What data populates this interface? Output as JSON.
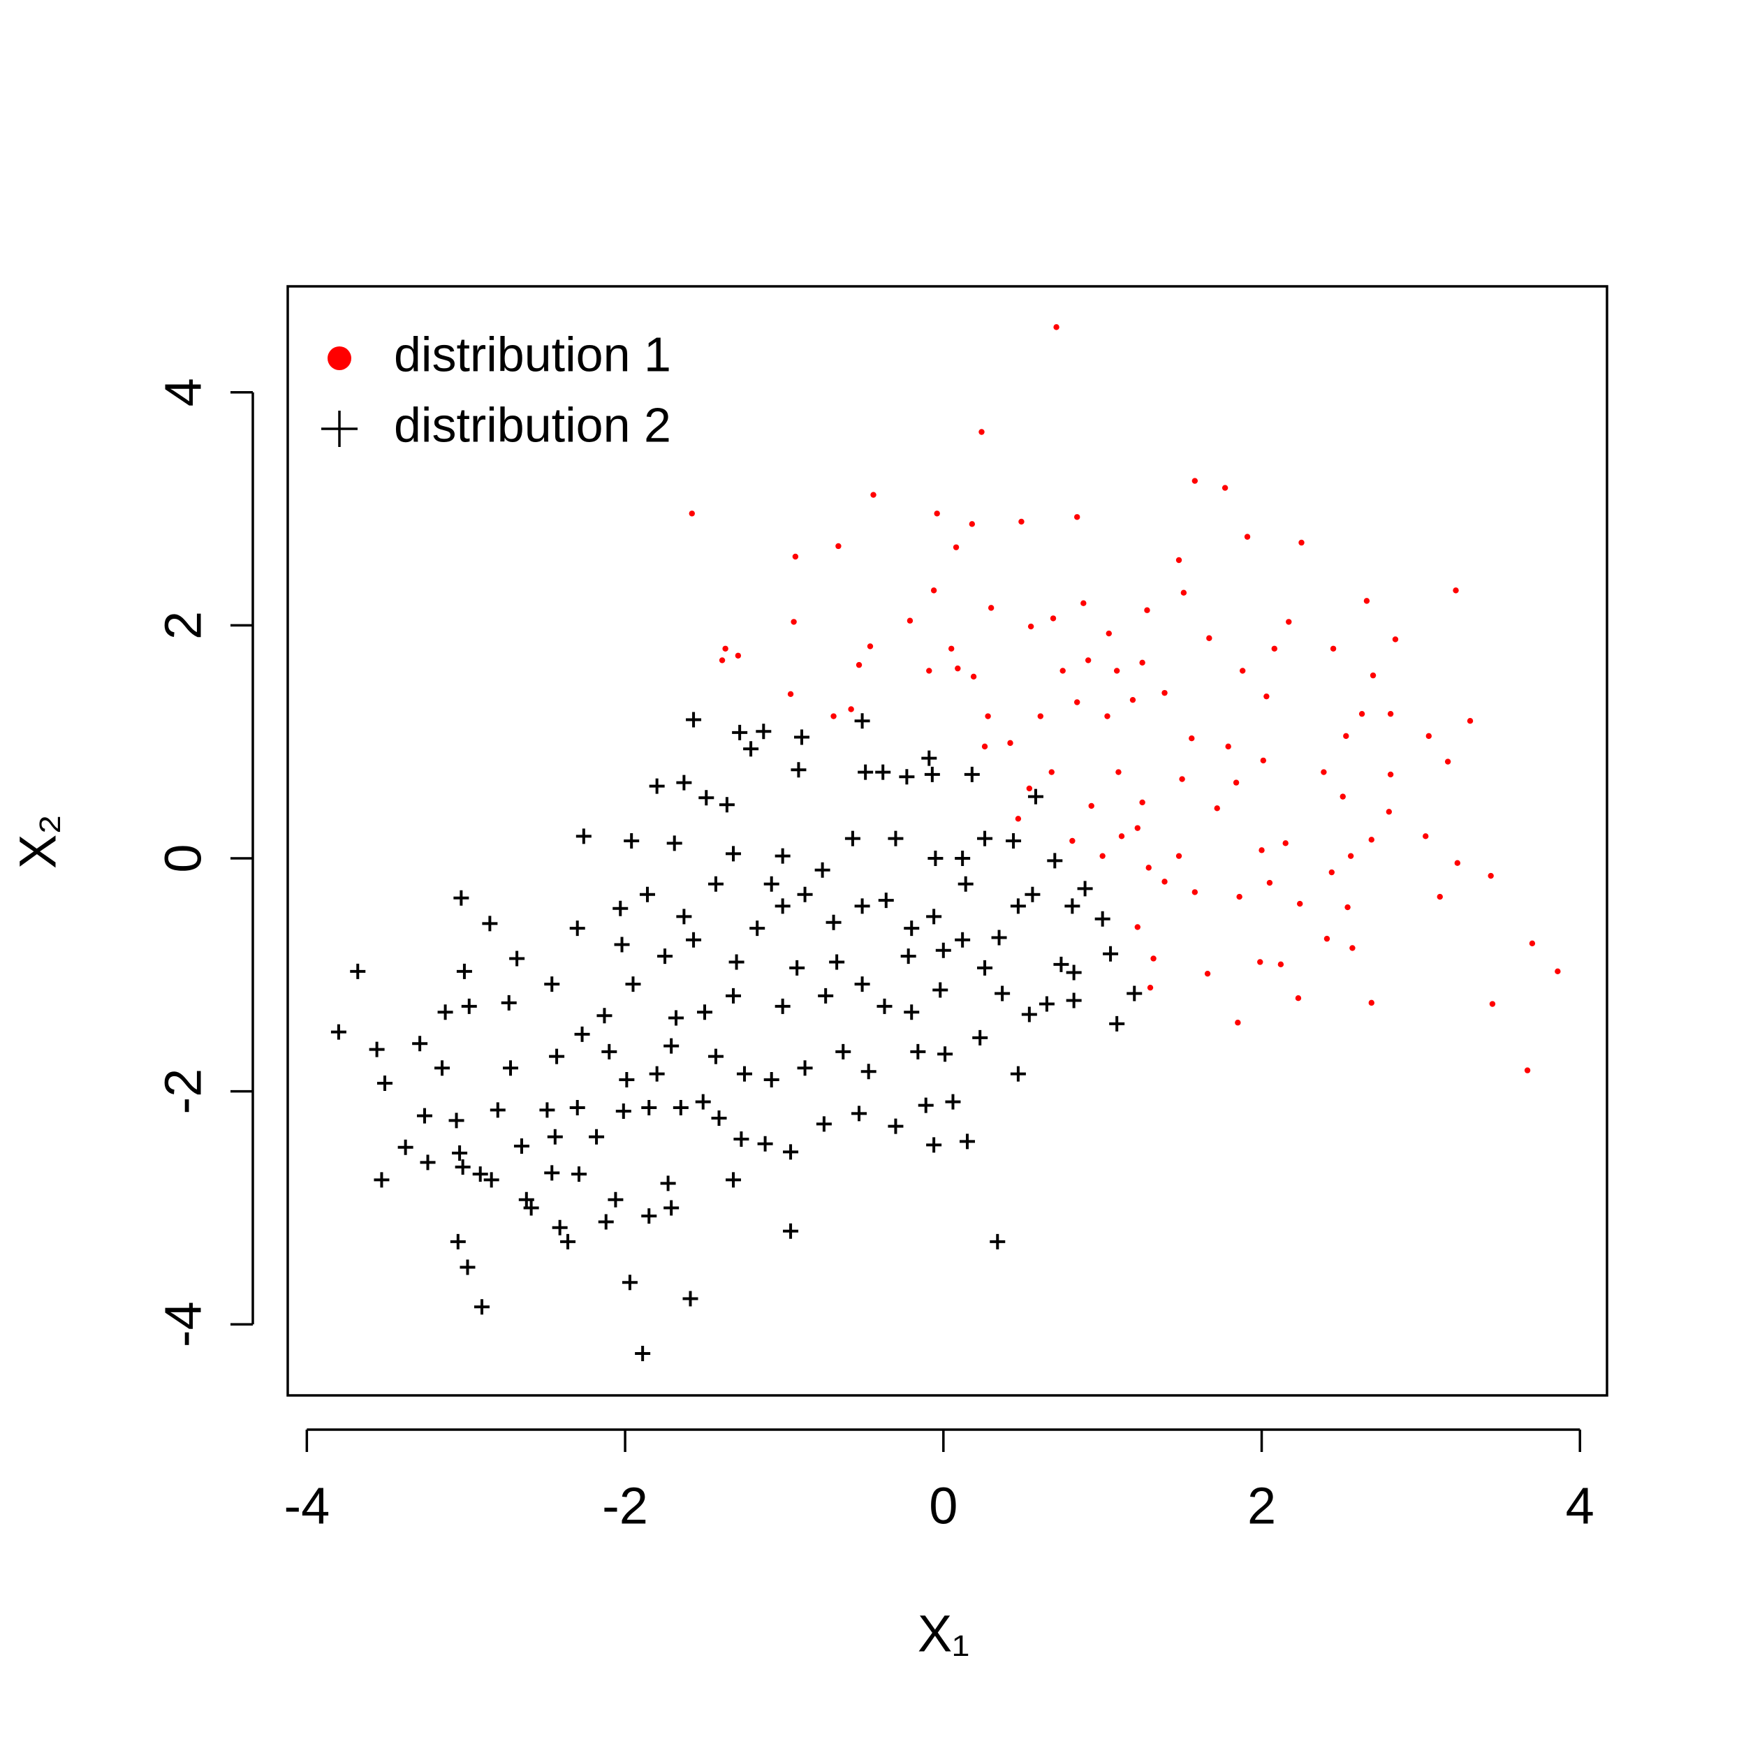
{
  "chart_data": {
    "type": "scatter",
    "xlabel": "X₁",
    "ylabel": "X₂",
    "xlim": [
      -4.12,
      4.17
    ],
    "ylim": [
      -4.61,
      4.91
    ],
    "xticks": [
      -4,
      -2,
      0,
      2,
      4
    ],
    "yticks": [
      -4,
      -2,
      0,
      2,
      4
    ],
    "legend": "top-left",
    "series": [
      {
        "name": "distribution 1",
        "color": "#ff0000",
        "marker": "dot",
        "x": [
          0.71,
          0.24,
          -1.58,
          -0.44,
          -0.04,
          1.58,
          1.77,
          0.84,
          0.18,
          0.49,
          1.91,
          -0.93,
          -0.66,
          2.25,
          1.48,
          3.22,
          2.66,
          2.84,
          -0.94,
          2.17,
          -0.21,
          -1.37,
          -1.29,
          -1.39,
          -0.46,
          2.45,
          2.7,
          -0.96,
          3.31,
          3.05,
          3.17,
          2.81,
          2.63,
          2.53,
          2.39,
          2.51,
          2.81,
          2.8,
          2.69,
          3.03,
          3.23,
          3.12,
          3.44,
          3.7,
          3.86,
          3.45,
          3.67,
          2.69,
          2.23,
          1.85,
          1.66,
          1.99,
          2.12,
          2.57,
          2.41,
          2.24,
          2.54,
          2.44,
          2.56,
          2.05,
          1.86,
          1.32,
          1.3,
          1.22,
          1.58,
          1.39,
          1.22,
          1.0,
          0.81,
          0.93,
          1.1,
          1.25,
          1.5,
          1.72,
          1.84,
          2.01,
          1.79,
          1.56,
          1.39,
          1.19,
          1.03,
          0.84,
          0.61,
          0.42,
          0.26,
          0.54,
          0.68,
          0.75,
          0.91,
          1.04,
          0.88,
          0.69,
          0.55,
          1.28,
          1.51,
          1.67,
          1.88,
          2.03,
          1.25,
          1.09,
          0.19,
          0.28,
          0.05,
          -0.09,
          0.09,
          -0.53,
          -0.69,
          -0.58,
          0.08,
          0.3,
          -0.06,
          2.0,
          2.15,
          1.29,
          1.12,
          2.08,
          1.48,
          0.47
        ],
        "y": [
          4.56,
          3.66,
          2.96,
          3.12,
          2.96,
          3.24,
          3.18,
          2.93,
          2.87,
          2.89,
          2.76,
          2.59,
          2.68,
          2.71,
          2.56,
          2.3,
          2.21,
          1.88,
          2.03,
          2.03,
          2.04,
          1.8,
          1.74,
          1.7,
          1.82,
          1.8,
          1.57,
          1.41,
          1.18,
          1.05,
          0.83,
          1.24,
          1.24,
          1.05,
          0.74,
          0.53,
          0.72,
          0.4,
          0.16,
          0.19,
          -0.04,
          -0.33,
          -0.15,
          -0.73,
          -0.97,
          -1.25,
          -1.82,
          -1.24,
          -1.2,
          -1.41,
          -0.99,
          -0.89,
          -0.91,
          -0.77,
          -0.69,
          -0.39,
          -0.42,
          -0.12,
          0.02,
          -0.21,
          -0.33,
          -0.86,
          -1.11,
          -0.59,
          -0.29,
          -0.2,
          0.26,
          0.02,
          0.15,
          0.45,
          0.74,
          0.48,
          0.68,
          0.43,
          0.65,
          0.84,
          0.96,
          1.03,
          1.42,
          1.36,
          1.22,
          1.34,
          1.22,
          0.99,
          0.96,
          0.6,
          0.74,
          1.61,
          1.7,
          1.93,
          2.19,
          2.06,
          1.99,
          2.13,
          2.28,
          1.89,
          1.61,
          1.39,
          1.68,
          1.61,
          1.56,
          1.22,
          1.8,
          1.61,
          1.63,
          1.66,
          1.22,
          1.28,
          2.67,
          2.15,
          2.3,
          0.07,
          0.13,
          -0.08,
          0.19,
          1.8,
          0.02,
          0.34
        ]
      },
      {
        "name": "distribution 2",
        "color": "#000000",
        "marker": "plus",
        "x": [
          -1.57,
          -1.28,
          -1.13,
          -1.21,
          -0.89,
          -0.91,
          -0.51,
          -0.49,
          -0.38,
          -0.09,
          0.18,
          -0.07,
          -0.23,
          -1.8,
          -1.63,
          -1.49,
          -1.36,
          -2.26,
          -1.96,
          -1.69,
          -1.32,
          -1.01,
          -0.76,
          -0.57,
          -0.3,
          -0.05,
          0.12,
          0.26,
          0.44,
          0.58,
          0.7,
          0.89,
          0.81,
          1.0,
          1.05,
          0.74,
          0.82,
          1.2,
          1.09,
          0.82,
          0.65,
          0.54,
          0.47,
          0.34,
          0.15,
          -0.06,
          0.06,
          -0.11,
          -0.3,
          -0.53,
          -0.75,
          -0.96,
          -0.96,
          -1.59,
          -1.89,
          -1.97,
          -2.9,
          -2.99,
          -3.05,
          -2.36,
          -2.41,
          -2.12,
          -1.85,
          -1.71,
          -2.06,
          -1.73,
          -2.62,
          -2.59,
          -2.46,
          -2.29,
          -2.84,
          -2.91,
          -3.02,
          -3.04,
          -3.24,
          -3.53,
          -3.38,
          -3.26,
          -3.06,
          -2.8,
          -2.65,
          -2.49,
          -2.44,
          -2.3,
          -2.18,
          -2.01,
          -1.85,
          -1.65,
          -1.99,
          -1.8,
          -1.51,
          -1.41,
          -1.27,
          -1.12,
          -1.32,
          -1.43,
          -1.25,
          -1.08,
          -0.87,
          -0.63,
          -0.47,
          -0.16,
          0.01,
          0.23,
          0.37,
          0.26,
          0.12,
          0.35,
          0.47,
          0.56,
          0.0,
          -0.2,
          -0.36,
          -0.51,
          -0.69,
          -0.87,
          -1.01,
          -1.17,
          -1.3,
          -1.57,
          -1.75,
          -1.95,
          -2.13,
          -2.27,
          -2.43,
          -2.46,
          -2.73,
          -2.98,
          -3.13,
          -2.85,
          -3.03,
          -3.01,
          -2.68,
          -3.29,
          -3.56,
          -3.8,
          -3.68,
          -3.51,
          -3.15,
          -2.72,
          -2.3,
          -2.03,
          -1.86,
          -2.02,
          -1.63,
          -1.43,
          -1.08,
          -0.92,
          -1.01,
          -0.74,
          -0.51,
          -0.37,
          -0.2,
          -0.02,
          -1.32,
          -1.5,
          -1.68,
          -1.71,
          -2.1,
          -0.67,
          -0.22,
          -0.06,
          0.14
        ],
        "y": [
          1.19,
          1.08,
          1.09,
          0.94,
          1.04,
          0.76,
          1.18,
          0.74,
          0.74,
          0.86,
          0.72,
          0.72,
          0.7,
          0.62,
          0.65,
          0.52,
          0.46,
          0.19,
          0.15,
          0.13,
          0.04,
          0.02,
          -0.1,
          0.17,
          0.17,
          0.0,
          0.0,
          0.17,
          0.15,
          0.53,
          -0.02,
          -0.26,
          -0.41,
          -0.52,
          -0.82,
          -0.91,
          -0.98,
          -1.16,
          -1.42,
          -1.22,
          -1.25,
          -1.34,
          -1.85,
          -3.29,
          -2.43,
          -2.46,
          -2.09,
          -2.12,
          -2.3,
          -2.19,
          -2.28,
          -2.52,
          -3.2,
          -3.78,
          -4.25,
          -3.64,
          -3.85,
          -3.51,
          -3.29,
          -3.29,
          -3.17,
          -3.12,
          -3.07,
          -3.0,
          -2.93,
          -2.79,
          -2.93,
          -3.0,
          -2.7,
          -2.71,
          -2.76,
          -2.71,
          -2.65,
          -2.53,
          -2.61,
          -2.76,
          -2.48,
          -2.21,
          -2.25,
          -2.16,
          -2.47,
          -2.16,
          -2.39,
          -2.14,
          -2.39,
          -2.17,
          -2.14,
          -2.14,
          -1.9,
          -1.85,
          -2.09,
          -2.23,
          -2.41,
          -2.45,
          -2.76,
          -1.7,
          -1.85,
          -1.9,
          -1.8,
          -1.66,
          -1.83,
          -1.66,
          -1.68,
          -1.54,
          -1.16,
          -0.94,
          -0.7,
          -0.68,
          -0.41,
          -0.31,
          -0.79,
          -0.6,
          -0.36,
          -0.41,
          -0.55,
          -0.31,
          -0.41,
          -0.6,
          -0.89,
          -0.7,
          -0.84,
          -1.08,
          -1.35,
          -1.51,
          -1.7,
          -1.08,
          -1.24,
          -1.27,
          -1.32,
          -0.56,
          -0.34,
          -0.97,
          -0.86,
          -1.59,
          -1.64,
          -1.49,
          -0.97,
          -1.93,
          -1.8,
          -1.8,
          -0.6,
          -0.43,
          -0.31,
          -0.74,
          -0.5,
          -0.22,
          -0.22,
          -0.94,
          -1.27,
          -1.18,
          -1.08,
          -1.27,
          -1.32,
          -1.13,
          -1.18,
          -1.32,
          -1.37,
          -1.61,
          -1.66,
          -0.89,
          -0.84,
          -0.5,
          -0.22
        ]
      }
    ]
  }
}
